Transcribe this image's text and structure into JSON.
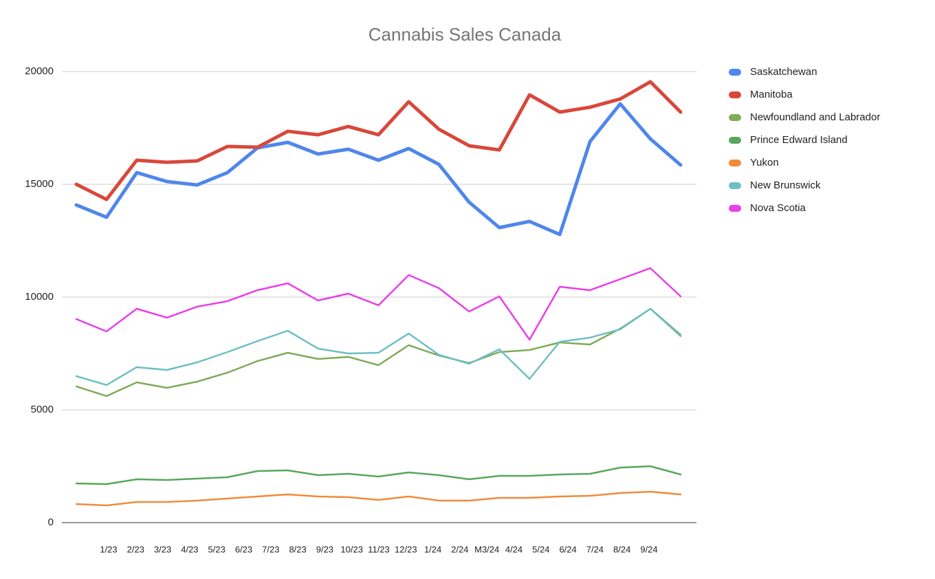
{
  "chart_data": {
    "type": "line",
    "title": "Cannabis Sales Canada",
    "categories": [
      "1/23",
      "2/23",
      "3/23",
      "4/23",
      "5/23",
      "6/23",
      "7/23",
      "8/23",
      "9/23",
      "10/23",
      "11/23",
      "12/23",
      "1/24",
      "2/24",
      "M3/24",
      "4/24",
      "5/24",
      "6/24",
      "7/24",
      "8/24",
      "9/24"
    ],
    "series": [
      {
        "name": "Saskatchewan",
        "color": "#4f86ec",
        "line_width": 5,
        "values": [
          14085,
          13537,
          15518,
          15122,
          14970,
          15518,
          16616,
          16860,
          16342,
          16555,
          16067,
          16585,
          15884,
          14207,
          13079,
          13354,
          12775,
          16891,
          18567,
          17012,
          15854
        ]
      },
      {
        "name": "Manitoba",
        "color": "#d9473b",
        "line_width": 5,
        "values": [
          15000,
          14330,
          16068,
          15977,
          16037,
          16677,
          16647,
          17349,
          17196,
          17562,
          17196,
          18660,
          17440,
          16708,
          16525,
          18965,
          18202,
          18416,
          18782,
          19544,
          18202
        ]
      },
      {
        "name": "Newfoundland and Labrador",
        "color": "#7fab58",
        "line_width": 2.5,
        "values": [
          6037,
          5610,
          6220,
          5976,
          6250,
          6647,
          7165,
          7531,
          7256,
          7348,
          6982,
          7866,
          7409,
          7074,
          7561,
          7653,
          7988,
          7897,
          8598,
          9482,
          8324
        ]
      },
      {
        "name": "Prince Edward Island",
        "color": "#58a65c",
        "line_width": 2.5,
        "values": [
          1738,
          1707,
          1921,
          1890,
          1951,
          2012,
          2287,
          2317,
          2104,
          2165,
          2043,
          2226,
          2104,
          1921,
          2073,
          2073,
          2134,
          2165,
          2439,
          2500,
          2134
        ]
      },
      {
        "name": "Yukon",
        "color": "#f08b3b",
        "line_width": 2.5,
        "values": [
          823,
          762,
          915,
          915,
          976,
          1067,
          1159,
          1250,
          1159,
          1128,
          1006,
          1159,
          976,
          976,
          1098,
          1098,
          1159,
          1189,
          1311,
          1372,
          1250
        ]
      },
      {
        "name": "New Brunswick",
        "color": "#6dbfc3",
        "line_width": 2.5,
        "values": [
          6494,
          6098,
          6891,
          6769,
          7104,
          7561,
          8049,
          8506,
          7714,
          7500,
          7531,
          8385,
          7439,
          7043,
          7683,
          6372,
          8019,
          8202,
          8567,
          9482,
          8262
        ]
      },
      {
        "name": "Nova Scotia",
        "color": "#e83fe8",
        "line_width": 2.5,
        "values": [
          9025,
          8476,
          9482,
          9086,
          9574,
          9818,
          10306,
          10610,
          9848,
          10153,
          9635,
          10976,
          10397,
          9360,
          10031,
          8110,
          10458,
          10306,
          10793,
          11281,
          10031
        ]
      }
    ],
    "ylim": [
      0,
      20000
    ],
    "yticks": [
      0,
      5000,
      10000,
      15000,
      20000
    ],
    "grid": true,
    "legend": "right"
  }
}
